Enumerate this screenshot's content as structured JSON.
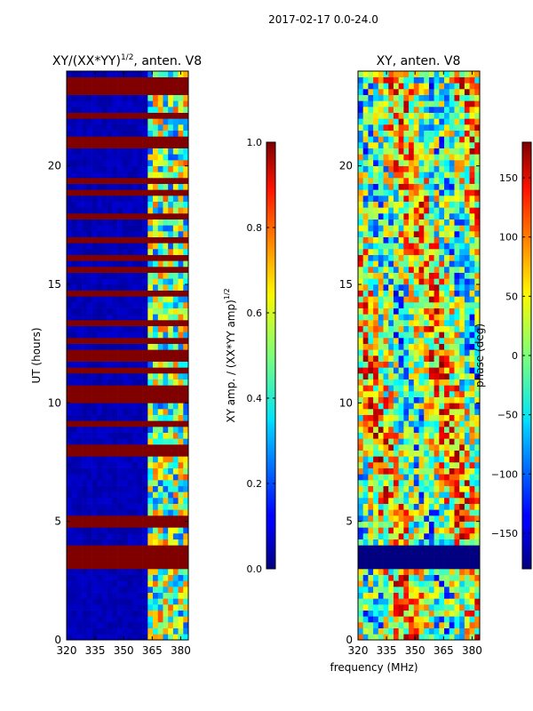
{
  "figure": {
    "suptitle": "2017-02-17 0.0-24.0",
    "xlabel": "frequency (MHz)"
  },
  "chart_data": [
    {
      "type": "heatmap",
      "title": "XY/(XX*YY)",
      "title_power": "1/2",
      "title_suffix": ", anten. V8",
      "xlabel": "",
      "ylabel": "UT (hours)",
      "xlim": [
        320,
        384
      ],
      "ylim": [
        0,
        24
      ],
      "xticks": [
        320,
        335,
        350,
        365,
        380
      ],
      "yticks": [
        0,
        5,
        10,
        15,
        20
      ],
      "colorbar": {
        "label": "XY amp. / (XX*YY amp)",
        "label_power": "1/2",
        "range": [
          0.0,
          1.0
        ],
        "ticks": [
          "0.0",
          "0.2",
          "0.4",
          "0.6",
          "0.8",
          "1.0"
        ]
      },
      "colormap": "jet",
      "note": "Normalized cross-correlation amplitude. Flagged/saturated rows appear dark red (1.0); bulk of band is dark blue (~0.05); band ~362-382 MHz shows structured values 0.2-0.8."
    },
    {
      "type": "heatmap",
      "title": "XY, anten. V8",
      "xlabel": "",
      "ylabel": "",
      "xlim": [
        320,
        384
      ],
      "ylim": [
        0,
        24
      ],
      "xticks": [
        320,
        335,
        350,
        365,
        380
      ],
      "yticks": [
        0,
        5,
        10,
        15,
        20
      ],
      "colorbar": {
        "label": "phase (deg)",
        "range": [
          -180,
          180
        ],
        "ticks": [
          "−150",
          "−100",
          "−50",
          "0",
          "50",
          "100",
          "150"
        ]
      },
      "colormap": "jet",
      "note": "Cross-correlation phase. Mixed phase values across band; a dark-blue (-180 deg) block near 3-4 h; broad yellow/green regions with red/blue patches."
    }
  ]
}
